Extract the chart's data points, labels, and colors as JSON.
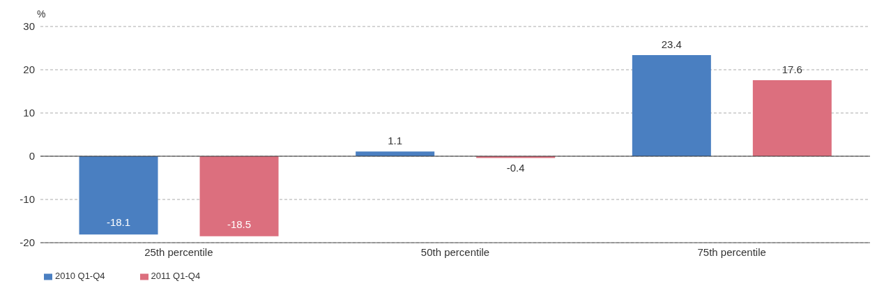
{
  "chart_data": {
    "type": "bar",
    "ylabel": "%",
    "categories": [
      "25th percentile",
      "50th percentile",
      "75th percentile"
    ],
    "series": [
      {
        "name": "2010 Q1-Q4",
        "color": "#4a7fc1",
        "values": [
          -18.1,
          1.1,
          23.4
        ]
      },
      {
        "name": "2011 Q1-Q4",
        "color": "#dc6f7e",
        "values": [
          -18.5,
          -0.4,
          17.6
        ]
      }
    ],
    "ylim": [
      -20,
      30
    ],
    "yticks": [
      -20,
      -10,
      0,
      10,
      20,
      30
    ],
    "grid": "y",
    "legend": "bottom left",
    "data_labels": true,
    "ref_lines": [
      {
        "axis": "y",
        "value": 0,
        "label": null,
        "color": "#333333",
        "line_style": "solid"
      }
    ]
  }
}
